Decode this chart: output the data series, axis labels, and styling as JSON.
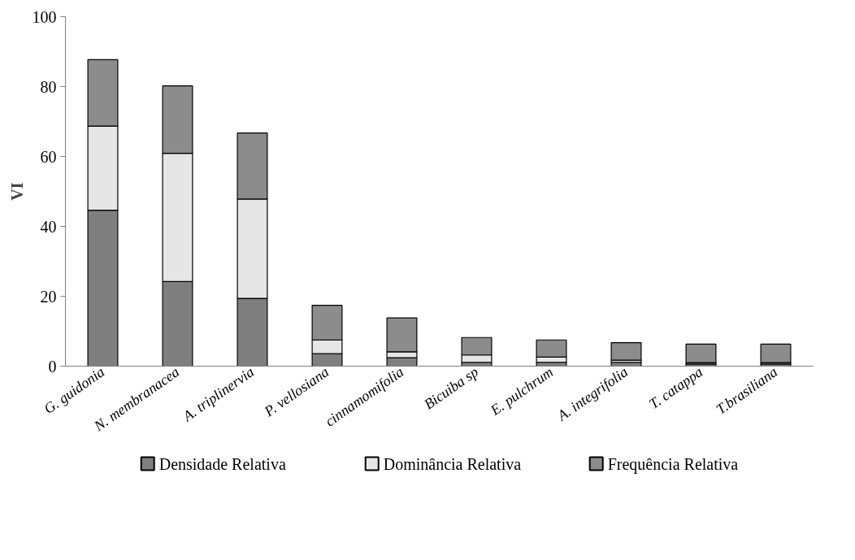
{
  "chart_data": {
    "type": "bar",
    "stacked": true,
    "ylabel": "VI",
    "categories": [
      "G. guidonia",
      "N. membranacea",
      "A. triplinervia",
      "P. vellosiana",
      "cinnamomifolia",
      "Bicuiba sp",
      "E. pulchrum",
      "A. integrifolia",
      "T. catappa",
      "T.brasiliana"
    ],
    "series": [
      {
        "name": "Densidade Relativa",
        "color": "#7f7f7f",
        "values": [
          44.6,
          24.2,
          19.4,
          3.6,
          2.4,
          1.1,
          1.1,
          1.1,
          0.6,
          0.6
        ]
      },
      {
        "name": "Dominância Relativa",
        "color": "#e6e6e6",
        "values": [
          24.1,
          36.7,
          28.4,
          3.9,
          1.7,
          2.1,
          1.5,
          0.6,
          0.4,
          0.4
        ]
      },
      {
        "name": "Frequência Relativa",
        "color": "#8c8c8c",
        "values": [
          19.0,
          19.3,
          18.9,
          9.9,
          9.7,
          5.0,
          4.9,
          5.0,
          5.3,
          5.3
        ]
      }
    ],
    "ylim": [
      0,
      100
    ],
    "yticks": [
      0,
      20,
      40,
      60,
      80,
      100
    ],
    "grid": false,
    "legend": "bottom"
  }
}
